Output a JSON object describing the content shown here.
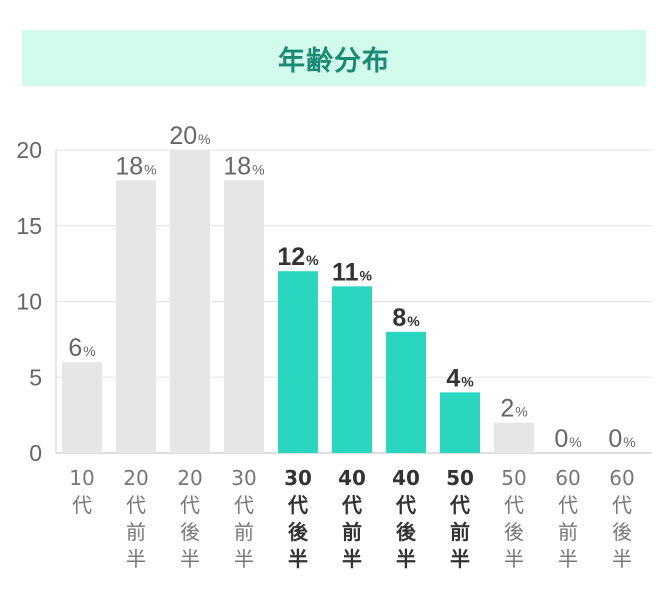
{
  "chart_data": {
    "type": "bar",
    "title": "年齢分布",
    "unit": "%",
    "categories": [
      "10代",
      "20代前半",
      "20代後半",
      "30代前半",
      "30代後半",
      "40代前半",
      "40代後半",
      "50代前半",
      "50代後半",
      "60代前半",
      "60代後半"
    ],
    "values": [
      6,
      18,
      20,
      18,
      12,
      11,
      8,
      4,
      2,
      0,
      0
    ],
    "highlighted": [
      false,
      false,
      false,
      false,
      true,
      true,
      true,
      true,
      false,
      false,
      false
    ],
    "ylim": [
      0,
      20
    ],
    "yticks": [
      0,
      5,
      10,
      15,
      20
    ],
    "grid": true,
    "colors": {
      "default_bar": "#e6e6e6",
      "highlight_bar": "#2ad6bf",
      "default_label": "#666666",
      "highlight_label": "#333333",
      "grid": "#e3e3e3"
    }
  }
}
